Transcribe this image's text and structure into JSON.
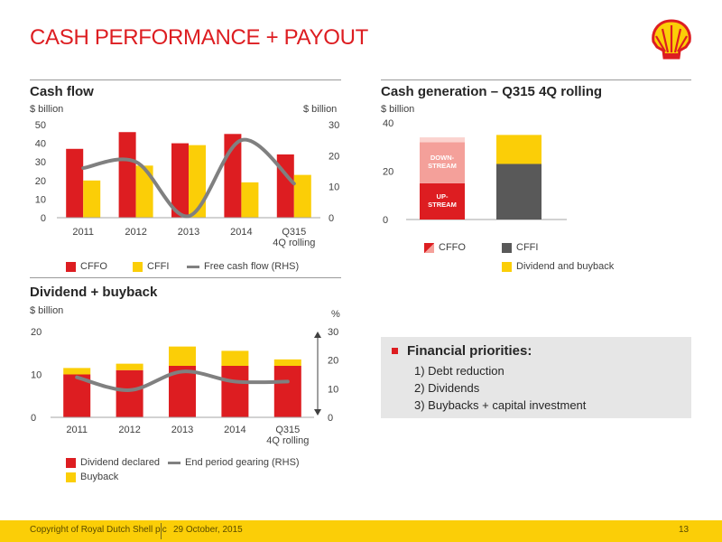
{
  "title": "CASH PERFORMANCE + PAYOUT",
  "colors": {
    "red": "#dd1d21",
    "yellow": "#fbce07",
    "grey": "#808080",
    "pink": "#f4a09a",
    "light_pink": "#fbd3cf",
    "dark_grey": "#595959",
    "footer": "#fbce07"
  },
  "cashflow": {
    "title": "Cash flow",
    "unit_left": "$ billion",
    "unit_right": "$ billion",
    "legend": {
      "cffo": "CFFO",
      "cffi": "CFFI",
      "fcf": "Free cash flow (RHS)"
    }
  },
  "cashgen": {
    "title": "Cash generation – Q315 4Q rolling",
    "unit": "$ billion",
    "label_down": "DOWN-\nSTREAM",
    "label_up": "UP-\nSTREAM",
    "legend": {
      "cffo": "CFFO",
      "cffi": "CFFI",
      "div": "Dividend and buyback"
    }
  },
  "dividend": {
    "title": "Dividend + buyback",
    "unit_left": "$ billion",
    "unit_right": "%",
    "legend": {
      "div": "Dividend declared",
      "gear": "End period gearing (RHS)",
      "buyback": "Buyback"
    }
  },
  "priorities": {
    "heading": "Financial priorities:",
    "items": [
      "1) Debt reduction",
      "2) Dividends",
      "3) Buybacks + capital investment"
    ]
  },
  "footer": {
    "copyright": "Copyright of Royal Dutch Shell plc",
    "date": "29  October, 2015",
    "page": "13"
  },
  "chart_data": [
    {
      "type": "bar",
      "title": "Cash flow",
      "categories": [
        "2011",
        "2012",
        "2013",
        "2014",
        "Q315\n4Q rolling"
      ],
      "ylim": [
        0,
        50
      ],
      "yticks": [
        0,
        10,
        20,
        30,
        40,
        50
      ],
      "y2lim": [
        0,
        30
      ],
      "y2ticks": [
        0,
        10,
        20,
        30
      ],
      "ylabel": "$ billion",
      "y2label": "$ billion",
      "series": [
        {
          "name": "CFFO",
          "values": [
            37,
            46,
            40,
            45,
            34
          ],
          "color": "#dd1d21",
          "axis": "left"
        },
        {
          "name": "CFFI",
          "values": [
            20,
            28,
            39,
            19,
            23
          ],
          "color": "#fbce07",
          "axis": "left"
        },
        {
          "name": "Free cash flow (RHS)",
          "values": [
            16,
            18,
            0.5,
            25,
            11
          ],
          "color": "#808080",
          "axis": "right",
          "kind": "line"
        }
      ]
    },
    {
      "type": "bar",
      "stacked": true,
      "title": "Cash generation – Q315 4Q rolling",
      "categories": [
        "CFFO",
        "CFFI + Dividend and buyback"
      ],
      "ylim": [
        0,
        40
      ],
      "yticks": [
        0,
        20,
        40
      ],
      "ylabel": "$ billion",
      "stacks": [
        [
          {
            "name": "UP-STREAM",
            "value": 15,
            "color": "#dd1d21"
          },
          {
            "name": "DOWN-STREAM",
            "value": 17,
            "color": "#f4a09a"
          },
          {
            "name": "",
            "value": 2,
            "color": "#fbd3cf"
          }
        ],
        [
          {
            "name": "CFFI",
            "value": 23,
            "color": "#595959"
          },
          {
            "name": "Dividend and buyback",
            "value": 12,
            "color": "#fbce07"
          }
        ]
      ]
    },
    {
      "type": "bar",
      "stacked": true,
      "title": "Dividend + buyback",
      "categories": [
        "2011",
        "2012",
        "2013",
        "2014",
        "Q315\n4Q rolling"
      ],
      "ylim": [
        0,
        20
      ],
      "yticks": [
        0,
        10,
        20
      ],
      "y2lim": [
        0,
        30
      ],
      "y2ticks": [
        0,
        10,
        20,
        30
      ],
      "ylabel": "$ billion",
      "y2label": "%",
      "series": [
        {
          "name": "Dividend declared",
          "values": [
            10,
            11,
            12,
            12,
            12
          ],
          "color": "#dd1d21"
        },
        {
          "name": "Buyback",
          "values": [
            1.5,
            1.5,
            4.5,
            3.5,
            1.5
          ],
          "color": "#fbce07"
        },
        {
          "name": "End period gearing (RHS)",
          "values": [
            14,
            9.5,
            16,
            12.5,
            12.5
          ],
          "color": "#808080",
          "axis": "right",
          "kind": "line"
        }
      ]
    }
  ]
}
